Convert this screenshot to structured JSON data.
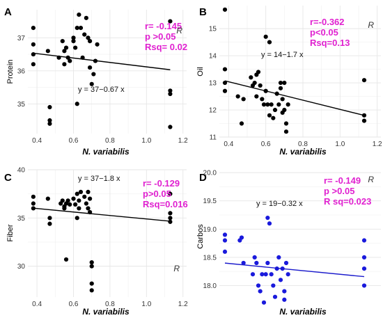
{
  "chart_data": [
    {
      "panel": "A",
      "type": "scatter",
      "xlabel": "N. variabilis",
      "ylabel": "Protein",
      "xlim": [
        0.35,
        1.22
      ],
      "ylim": [
        34.1,
        37.85
      ],
      "x_ticks": [
        0.4,
        0.6,
        0.8,
        1.0,
        1.2
      ],
      "x_tick_labels": [
        "0.4",
        "0.6",
        "0.8",
        "1.0",
        "1.2"
      ],
      "y_ticks": [
        35,
        36,
        37
      ],
      "y_tick_labels": [
        "35",
        "36",
        "37"
      ],
      "point_color": "#000000",
      "line_color": "#000000",
      "fit": {
        "intercept": 36.79,
        "slope": -0.67
      },
      "equation": "y = 37−0.67 x",
      "stats": [
        "r= -0.145",
        "p >0.05",
        "Rsq= 0.02"
      ],
      "stats_color": "#e020d0",
      "r_label": "R",
      "points": [
        [
          0.38,
          37.3
        ],
        [
          0.38,
          36.8
        ],
        [
          0.38,
          36.5
        ],
        [
          0.38,
          36.2
        ],
        [
          0.46,
          36.6
        ],
        [
          0.47,
          34.9
        ],
        [
          0.47,
          34.5
        ],
        [
          0.47,
          34.4
        ],
        [
          0.52,
          36.4
        ],
        [
          0.54,
          36.9
        ],
        [
          0.55,
          36.6
        ],
        [
          0.55,
          36.2
        ],
        [
          0.56,
          36.7
        ],
        [
          0.57,
          36.4
        ],
        [
          0.58,
          36.3
        ],
        [
          0.6,
          37.0
        ],
        [
          0.6,
          36.9
        ],
        [
          0.61,
          36.7
        ],
        [
          0.62,
          37.3
        ],
        [
          0.62,
          35.0
        ],
        [
          0.63,
          37.7
        ],
        [
          0.64,
          37.3
        ],
        [
          0.65,
          36.4
        ],
        [
          0.66,
          37.1
        ],
        [
          0.67,
          37.6
        ],
        [
          0.68,
          37.0
        ],
        [
          0.69,
          36.9
        ],
        [
          0.69,
          36.1
        ],
        [
          0.7,
          35.6
        ],
        [
          0.71,
          35.9
        ],
        [
          0.72,
          36.3
        ],
        [
          0.73,
          36.8
        ],
        [
          1.13,
          37.5
        ],
        [
          1.13,
          35.4
        ],
        [
          1.13,
          35.3
        ],
        [
          1.13,
          34.3
        ]
      ]
    },
    {
      "panel": "B",
      "type": "scatter",
      "xlabel": "N. variabilis",
      "ylabel": "Oil",
      "xlim": [
        0.35,
        1.22
      ],
      "ylim": [
        11.0,
        15.85
      ],
      "x_ticks": [
        0.4,
        0.6,
        0.8,
        1.0,
        1.2
      ],
      "x_tick_labels": [
        "0.4",
        "0.6",
        "0.8",
        "1.0",
        "1.2"
      ],
      "y_ticks": [
        11,
        12,
        13,
        14,
        15
      ],
      "y_tick_labels": [
        "11",
        "12",
        "13",
        "14",
        "15"
      ],
      "point_color": "#000000",
      "line_color": "#000000",
      "fit": {
        "intercept": 13.72,
        "slope": -1.7
      },
      "equation": "y = 14−1.7 x",
      "stats": [
        "r=-0.362",
        "p<0.05",
        "Rsq=0.13"
      ],
      "stats_color": "#e020d0",
      "r_label": "R",
      "points": [
        [
          0.38,
          15.7
        ],
        [
          0.38,
          13.5
        ],
        [
          0.38,
          13.0
        ],
        [
          0.38,
          12.7
        ],
        [
          0.45,
          12.5
        ],
        [
          0.47,
          11.5
        ],
        [
          0.48,
          12.4
        ],
        [
          0.52,
          13.2
        ],
        [
          0.53,
          12.9
        ],
        [
          0.54,
          13.0
        ],
        [
          0.55,
          13.3
        ],
        [
          0.55,
          12.5
        ],
        [
          0.56,
          13.4
        ],
        [
          0.57,
          12.9
        ],
        [
          0.58,
          12.4
        ],
        [
          0.59,
          12.2
        ],
        [
          0.6,
          14.7
        ],
        [
          0.6,
          12.7
        ],
        [
          0.61,
          12.2
        ],
        [
          0.62,
          11.8
        ],
        [
          0.62,
          14.5
        ],
        [
          0.63,
          12.2
        ],
        [
          0.64,
          11.7
        ],
        [
          0.65,
          12.0
        ],
        [
          0.66,
          12.6
        ],
        [
          0.67,
          12.2
        ],
        [
          0.68,
          13.0
        ],
        [
          0.68,
          12.8
        ],
        [
          0.69,
          12.4
        ],
        [
          0.69,
          11.9
        ],
        [
          0.7,
          13.0
        ],
        [
          0.7,
          12.0
        ],
        [
          0.71,
          11.5
        ],
        [
          0.71,
          11.2
        ],
        [
          0.72,
          12.2
        ],
        [
          1.13,
          13.1
        ],
        [
          1.13,
          11.8
        ],
        [
          1.13,
          11.6
        ]
      ]
    },
    {
      "panel": "C",
      "type": "scatter",
      "xlabel": "N. variabilis",
      "ylabel": "Fiber",
      "xlim": [
        0.35,
        1.22
      ],
      "ylim": [
        26.8,
        40.0
      ],
      "x_ticks": [
        0.4,
        0.6,
        0.8,
        1.0,
        1.2
      ],
      "x_tick_labels": [
        "0.4",
        "0.6",
        "0.8",
        "1.0",
        "1.2"
      ],
      "y_ticks": [
        30,
        35,
        40
      ],
      "y_tick_labels": [
        "30",
        "35",
        "40"
      ],
      "point_color": "#000000",
      "line_color": "#000000",
      "fit": {
        "intercept": 36.7,
        "slope": -1.8
      },
      "equation": "y = 37−1.8 x",
      "stats": [
        "r= -0.129",
        "p>0.05",
        "Rsq=0.016"
      ],
      "stats_color": "#e020d0",
      "r_label": "R",
      "points": [
        [
          0.38,
          37.2
        ],
        [
          0.38,
          36.5
        ],
        [
          0.38,
          36.0
        ],
        [
          0.46,
          37.0
        ],
        [
          0.47,
          35.0
        ],
        [
          0.47,
          34.4
        ],
        [
          0.53,
          36.5
        ],
        [
          0.54,
          36.8
        ],
        [
          0.55,
          36.2
        ],
        [
          0.55,
          36.0
        ],
        [
          0.56,
          36.5
        ],
        [
          0.57,
          36.8
        ],
        [
          0.58,
          36.4
        ],
        [
          0.56,
          30.7
        ],
        [
          0.6,
          37.0
        ],
        [
          0.61,
          36.4
        ],
        [
          0.62,
          37.5
        ],
        [
          0.63,
          36.8
        ],
        [
          0.62,
          35.0
        ],
        [
          0.63,
          36.0
        ],
        [
          0.64,
          37.7
        ],
        [
          0.66,
          37.2
        ],
        [
          0.67,
          36.5
        ],
        [
          0.68,
          36.0
        ],
        [
          0.68,
          37.7
        ],
        [
          0.69,
          37.0
        ],
        [
          0.69,
          35.6
        ],
        [
          0.7,
          30.4
        ],
        [
          0.7,
          30.0
        ],
        [
          0.7,
          28.2
        ],
        [
          0.7,
          27.5
        ],
        [
          1.13,
          37.5
        ],
        [
          1.13,
          35.5
        ],
        [
          1.13,
          35.0
        ],
        [
          1.13,
          34.6
        ]
      ]
    },
    {
      "panel": "D",
      "type": "scatter",
      "xlabel": "N. variabilis",
      "ylabel": "Carbos",
      "xlim": [
        0.35,
        1.22
      ],
      "ylim": [
        17.55,
        20.1
      ],
      "x_ticks": [],
      "x_tick_labels": [],
      "y_ticks": [
        18.0,
        18.5,
        19.0,
        19.5,
        20.0
      ],
      "y_tick_labels": [
        "18.0",
        "18.5",
        "19.0",
        "19.5",
        "20.0"
      ],
      "point_color": "#1a1adc",
      "line_color": "#1a1acc",
      "fit": {
        "intercept": 18.52,
        "slope": -0.32
      },
      "equation": "y = 19−0.32 x",
      "stats": [
        "r= -0.149",
        "p >0.05",
        "R sq=0.023"
      ],
      "stats_color": "#e020d0",
      "r_label": "R",
      "points": [
        [
          0.38,
          18.9
        ],
        [
          0.38,
          18.8
        ],
        [
          0.38,
          18.6
        ],
        [
          0.46,
          18.8
        ],
        [
          0.47,
          18.85
        ],
        [
          0.48,
          18.4
        ],
        [
          0.53,
          18.2
        ],
        [
          0.54,
          18.5
        ],
        [
          0.55,
          18.4
        ],
        [
          0.56,
          18.0
        ],
        [
          0.57,
          17.9
        ],
        [
          0.58,
          18.2
        ],
        [
          0.59,
          17.7
        ],
        [
          0.6,
          18.2
        ],
        [
          0.61,
          18.4
        ],
        [
          0.61,
          19.2
        ],
        [
          0.62,
          19.1
        ],
        [
          0.63,
          18.2
        ],
        [
          0.64,
          18.0
        ],
        [
          0.65,
          17.8
        ],
        [
          0.66,
          18.3
        ],
        [
          0.67,
          18.5
        ],
        [
          0.68,
          18.1
        ],
        [
          0.69,
          18.3
        ],
        [
          0.7,
          17.9
        ],
        [
          0.7,
          17.75
        ],
        [
          0.71,
          18.4
        ],
        [
          0.72,
          18.2
        ],
        [
          1.13,
          18.8
        ],
        [
          1.13,
          18.5
        ],
        [
          1.13,
          18.3
        ],
        [
          1.13,
          18.0
        ]
      ]
    }
  ]
}
